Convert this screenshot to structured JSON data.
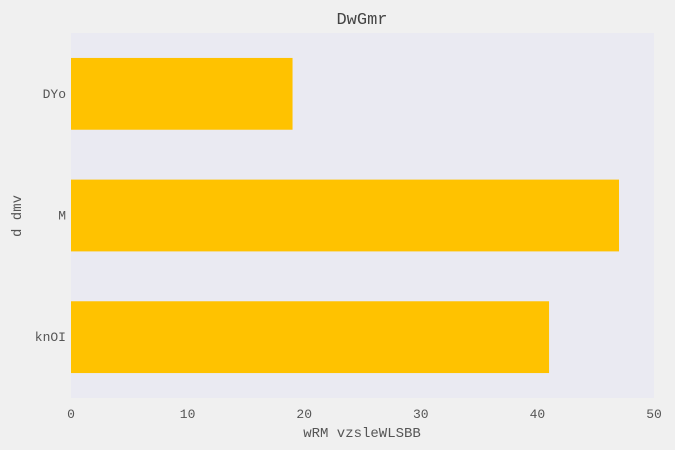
{
  "chart_data": {
    "type": "bar",
    "orientation": "horizontal",
    "title": "DwGmr",
    "xlabel": "wRM vzsleWLSBB",
    "ylabel": "d dmv",
    "categories": [
      "DYo",
      "M",
      "knOI"
    ],
    "values": [
      19,
      47,
      41
    ],
    "xlim": [
      0,
      50
    ],
    "xticks": [
      0,
      10,
      20,
      30,
      40,
      50
    ],
    "grid": false,
    "legend": "none",
    "colors": {
      "bar": "#FFC200",
      "plot_background": "#EAEAF2",
      "figure_background": "#F0F0F0"
    }
  }
}
